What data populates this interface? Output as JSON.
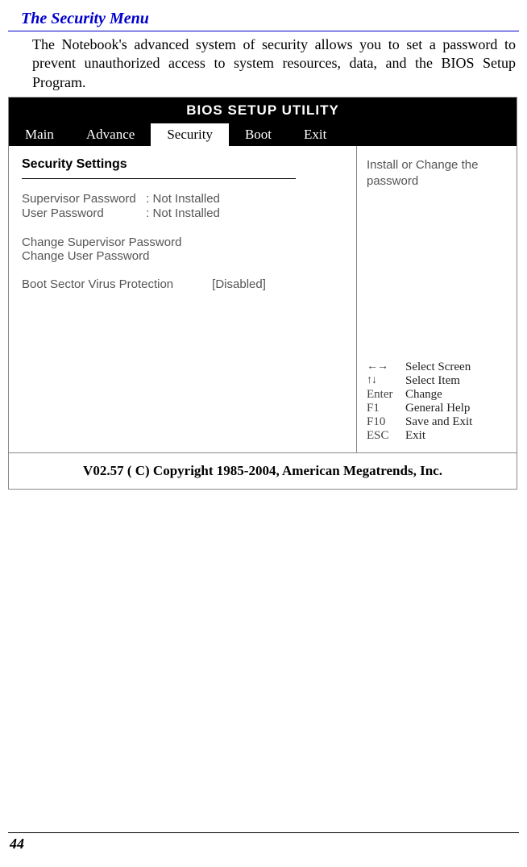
{
  "page": {
    "section_title": "The Security Menu",
    "intro": "The Notebook's advanced system of security allows you to set a password to prevent unauthorized access to system resources, data, and the BIOS Setup Program.",
    "page_number": "44"
  },
  "bios": {
    "title": "BIOS SETUP UTILITY",
    "tabs": {
      "main": "Main",
      "advance": "Advance",
      "security": "Security",
      "boot": "Boot",
      "exit": "Exit"
    },
    "left": {
      "heading": "Security Settings",
      "supervisor": {
        "label": "Supervisor Password",
        "value": "Not Installed"
      },
      "user": {
        "label": "User Password",
        "value": "Not Installed"
      },
      "change_supervisor": "Change Supervisor Password",
      "change_user": "Change User Password",
      "bsvp": {
        "label": "Boot Sector Virus Protection",
        "value": "[Disabled]"
      }
    },
    "right": {
      "help": "Install or Change the password",
      "keys": {
        "lr": {
          "key": "←→",
          "desc": "Select Screen"
        },
        "ud": {
          "key": "↑↓",
          "desc": "Select Item"
        },
        "enter": {
          "key": "Enter",
          "desc": "Change"
        },
        "f1": {
          "key": "F1",
          "desc": "General Help"
        },
        "f10": {
          "key": "F10",
          "desc": "Save and Exit"
        },
        "esc": {
          "key": "ESC",
          "desc": "Exit"
        }
      }
    },
    "footer": "V02.57  ( C) Copyright 1985-2004, American Megatrends, Inc."
  }
}
